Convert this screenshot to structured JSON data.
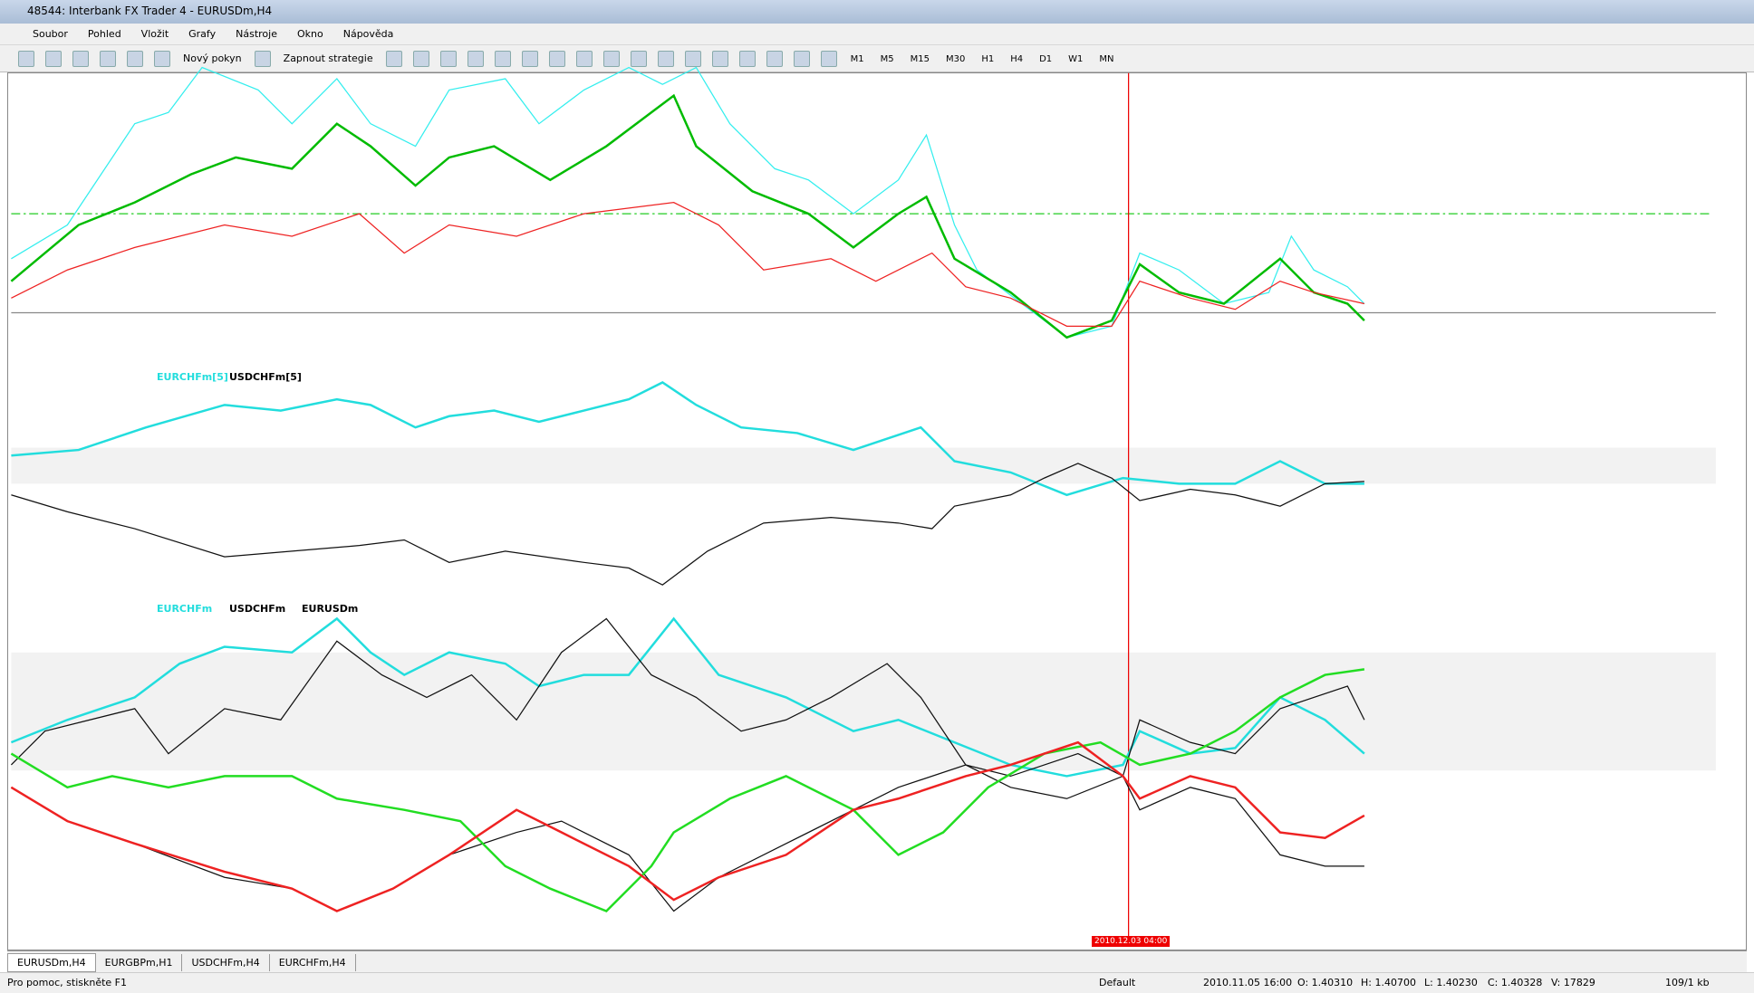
{
  "window": {
    "title": "48544: Interbank FX Trader 4 - EURUSDm,H4"
  },
  "menu": [
    "Soubor",
    "Pohled",
    "Vložit",
    "Grafy",
    "Nástroje",
    "Okno",
    "Nápověda"
  ],
  "toolbar": {
    "new_order": "Nový pokyn",
    "strategies": "Zapnout strategie",
    "timeframes": [
      "M1",
      "M5",
      "M15",
      "M30",
      "H1",
      "H4",
      "D1",
      "W1",
      "MN"
    ]
  },
  "chart": {
    "indicator1_labels": [
      "EURCHFm[5]",
      "USDCHFm[5]"
    ],
    "indicator2_labels": [
      "EURCHFm",
      "USDCHFm",
      "EURUSDm"
    ],
    "cursor_time": "2010.12.03 04:00"
  },
  "tabs": [
    "EURUSDm,H4",
    "EURGBPm,H1",
    "USDCHFm,H4",
    "EURCHFm,H4"
  ],
  "status": {
    "help": "Pro pomoc, stiskněte F1",
    "profile": "Default",
    "time": "2010.11.05 16:00",
    "open": "O: 1.40310",
    "high": "H: 1.40700",
    "low": "L: 1.40230",
    "close": "C: 1.40328",
    "volume": "V: 17829",
    "traffic": "109/1 kb"
  }
}
